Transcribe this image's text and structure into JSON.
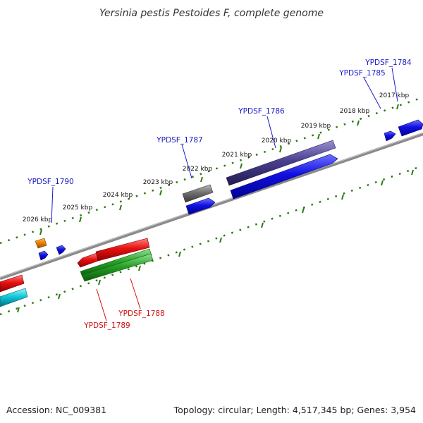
{
  "title": "Yersinia pestis Pestoides F, complete genome",
  "footer": {
    "accession": "Accession: NC_009381",
    "summary": "Topology: circular; Length: 4,517,345 bp; Genes: 3,954"
  },
  "colors": {
    "backbone": "#8a8a8a",
    "tick": "#2a7a10",
    "forward_label": "#1a1ac8",
    "reverse_label": "#d41010",
    "cds_forward": "#1010e0",
    "cds_purple": "#4a4090",
    "cds_gray": "#707070",
    "cds_orange": "#f08000",
    "cds_red": "#e81010",
    "cds_green": "#28a028",
    "cds_cyan": "#10c8d8"
  },
  "scale": {
    "tick_labels": [
      "2017 kbp",
      "2018 kbp",
      "2019 kbp",
      "2020 kbp",
      "2021 kbp",
      "2022 kbp",
      "2023 kbp",
      "2024 kbp",
      "2025 kbp",
      "2026 kbp"
    ]
  },
  "gene_labels": {
    "forward": [
      "YPDSF_1784",
      "YPDSF_1785",
      "YPDSF_1786",
      "YPDSF_1787",
      "YPDSF_1790"
    ],
    "reverse": [
      "YPDSF_1788",
      "YPDSF_1789"
    ]
  }
}
